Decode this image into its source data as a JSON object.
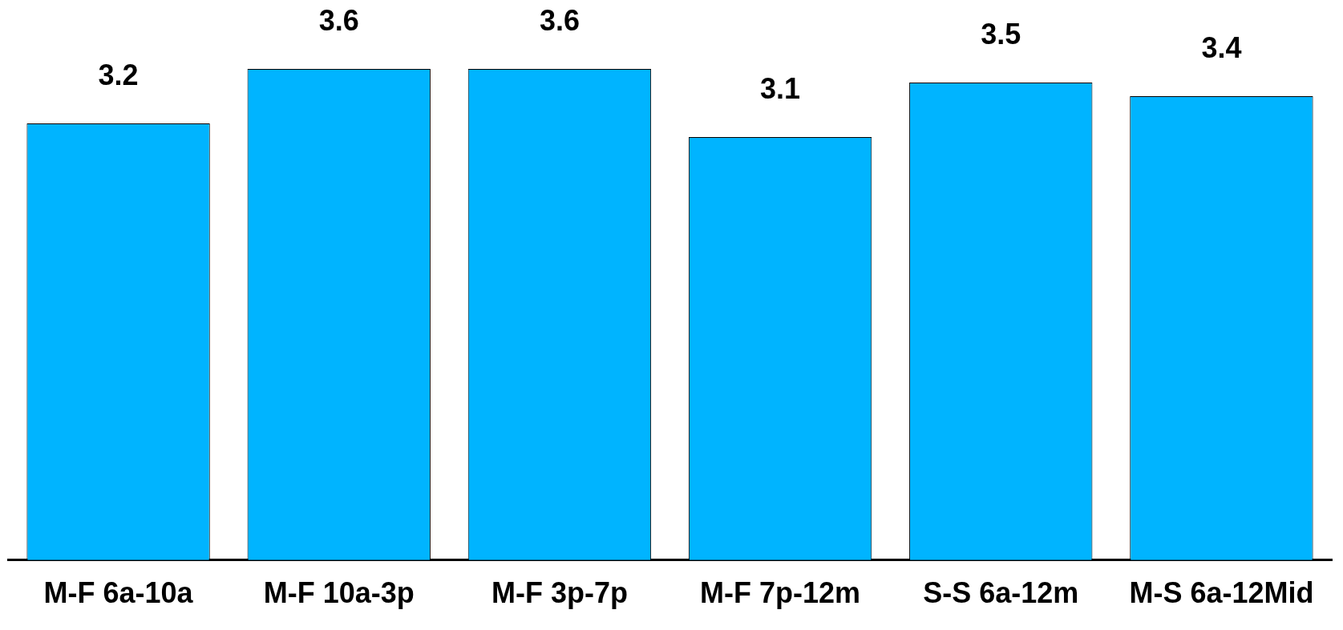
{
  "chart_data": {
    "type": "bar",
    "categories": [
      "M-F 6a-10a",
      "M-F 10a-3p",
      "M-F 3p-7p",
      "M-F 7p-12m",
      "S-S 6a-12m",
      "M-S 6a-12Mid"
    ],
    "values": [
      3.2,
      3.6,
      3.6,
      3.1,
      3.5,
      3.4
    ],
    "color": "#00b4ff",
    "data_labels": true
  }
}
